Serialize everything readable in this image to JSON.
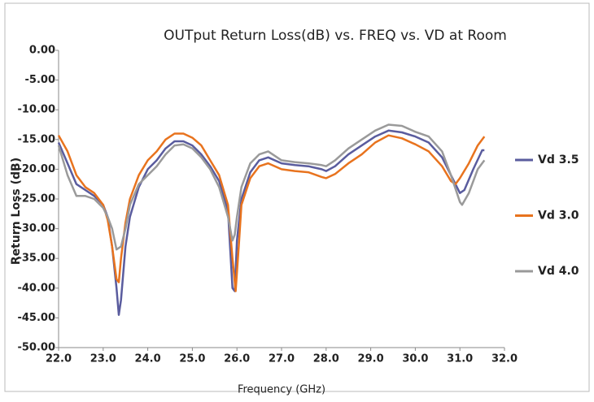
{
  "chart_data": {
    "type": "line",
    "title": "OUTput Return Loss(dB)  vs.  FREQ  vs. VD   at Room",
    "x_label": "Frequency (GHz)",
    "y_label": "Return Loss (dB)",
    "xlim": [
      22,
      32
    ],
    "xticks": [
      {
        "value": 22,
        "label": "22.0"
      },
      {
        "value": 23,
        "label": "23.0"
      },
      {
        "value": 24,
        "label": "24.0"
      },
      {
        "value": 25,
        "label": "25.0"
      },
      {
        "value": 26,
        "label": "26.0"
      },
      {
        "value": 27,
        "label": "27.0"
      },
      {
        "value": 28,
        "label": "28.0"
      },
      {
        "value": 29,
        "label": "29.0"
      },
      {
        "value": 30,
        "label": "30.0"
      },
      {
        "value": 31,
        "label": "31.0"
      },
      {
        "value": 32,
        "label": "32.0"
      }
    ],
    "ylim": [
      -50,
      0
    ],
    "yticks": [
      {
        "value": 0,
        "label": "0.00"
      },
      {
        "value": -5,
        "label": "-5.00"
      },
      {
        "value": -10,
        "label": "-10.00"
      },
      {
        "value": -15,
        "label": "-15.00"
      },
      {
        "value": -20,
        "label": "-20.00"
      },
      {
        "value": -25,
        "label": "-25.00"
      },
      {
        "value": -30,
        "label": "-30.00"
      },
      {
        "value": -35,
        "label": "-35.00"
      },
      {
        "value": -40,
        "label": "-40.00"
      },
      {
        "value": -45,
        "label": "-45.00"
      },
      {
        "value": -50,
        "label": "-50.00"
      }
    ],
    "legend": "right",
    "series": [
      {
        "name": "Vd 3.5",
        "color": "#5a5c9e",
        "x": [
          22.0,
          22.2,
          22.4,
          22.6,
          22.8,
          23.0,
          23.1,
          23.2,
          23.3,
          23.35,
          23.4,
          23.5,
          23.6,
          23.8,
          24.0,
          24.2,
          24.4,
          24.6,
          24.8,
          25.0,
          25.2,
          25.4,
          25.6,
          25.8,
          25.9,
          25.95,
          26.0,
          26.1,
          26.3,
          26.5,
          26.7,
          27.0,
          27.3,
          27.6,
          27.9,
          28.0,
          28.2,
          28.5,
          28.8,
          29.1,
          29.4,
          29.7,
          30.0,
          30.3,
          30.6,
          30.8,
          31.0,
          31.1,
          31.3,
          31.5,
          31.55
        ],
        "values": [
          -15.5,
          -19,
          -22.5,
          -23.5,
          -24.5,
          -26,
          -28,
          -33,
          -40,
          -44.5,
          -42,
          -33,
          -28,
          -23,
          -20,
          -18.5,
          -16.5,
          -15.3,
          -15.3,
          -16,
          -17.5,
          -19.5,
          -22,
          -27,
          -40,
          -40.5,
          -32,
          -25,
          -20.5,
          -18.5,
          -18,
          -19,
          -19.3,
          -19.5,
          -20,
          -20.3,
          -19.5,
          -17.5,
          -16,
          -14.5,
          -13.5,
          -13.8,
          -14.5,
          -15.5,
          -18,
          -21,
          -24,
          -23.5,
          -20,
          -16.8,
          -16.8
        ]
      },
      {
        "name": "Vd 3.0",
        "color": "#e8731e",
        "x": [
          22.0,
          22.2,
          22.4,
          22.6,
          22.8,
          23.0,
          23.1,
          23.2,
          23.3,
          23.35,
          23.4,
          23.5,
          23.6,
          23.8,
          24.0,
          24.2,
          24.4,
          24.6,
          24.8,
          25.0,
          25.2,
          25.4,
          25.6,
          25.8,
          25.9,
          25.97,
          26.05,
          26.1,
          26.3,
          26.5,
          26.7,
          27.0,
          27.3,
          27.6,
          27.9,
          28.0,
          28.2,
          28.5,
          28.8,
          29.1,
          29.4,
          29.7,
          30.0,
          30.3,
          30.6,
          30.8,
          30.9,
          31.0,
          31.2,
          31.4,
          31.55
        ],
        "values": [
          -14.3,
          -17,
          -21,
          -23,
          -24,
          -26,
          -28.5,
          -33,
          -38.5,
          -39,
          -35,
          -29,
          -25,
          -21,
          -18.5,
          -17,
          -15,
          -14,
          -14,
          -14.7,
          -16,
          -18.5,
          -21,
          -26,
          -35,
          -40.5,
          -32,
          -26,
          -21.5,
          -19.5,
          -19,
          -20,
          -20.3,
          -20.5,
          -21.3,
          -21.5,
          -20.8,
          -19,
          -17.5,
          -15.5,
          -14.3,
          -14.8,
          -15.8,
          -17,
          -19.5,
          -22,
          -22.5,
          -21.5,
          -19,
          -16,
          -14.5
        ]
      },
      {
        "name": "Vd 4.0",
        "color": "#9a9a9a",
        "x": [
          22.0,
          22.2,
          22.4,
          22.6,
          22.8,
          23.0,
          23.1,
          23.2,
          23.3,
          23.4,
          23.5,
          23.6,
          23.8,
          24.0,
          24.2,
          24.4,
          24.6,
          24.8,
          25.0,
          25.2,
          25.4,
          25.6,
          25.8,
          25.9,
          25.95,
          26.0,
          26.1,
          26.3,
          26.5,
          26.7,
          27.0,
          27.3,
          27.6,
          27.9,
          28.0,
          28.2,
          28.5,
          28.8,
          29.1,
          29.4,
          29.7,
          30.0,
          30.3,
          30.6,
          30.8,
          31.0,
          31.05,
          31.2,
          31.4,
          31.55
        ],
        "values": [
          -16,
          -21,
          -24.5,
          -24.5,
          -25,
          -26.5,
          -28,
          -30,
          -33.5,
          -33,
          -30,
          -26,
          -22.5,
          -21,
          -19.5,
          -17.5,
          -16,
          -15.8,
          -16.5,
          -18,
          -20,
          -23,
          -28,
          -32,
          -31,
          -28,
          -23,
          -19,
          -17.5,
          -17,
          -18.5,
          -18.8,
          -19,
          -19.3,
          -19.5,
          -18.5,
          -16.5,
          -15,
          -13.5,
          -12.5,
          -12.7,
          -13.7,
          -14.5,
          -17,
          -21,
          -25.5,
          -26,
          -24,
          -20,
          -18.5
        ]
      }
    ]
  }
}
